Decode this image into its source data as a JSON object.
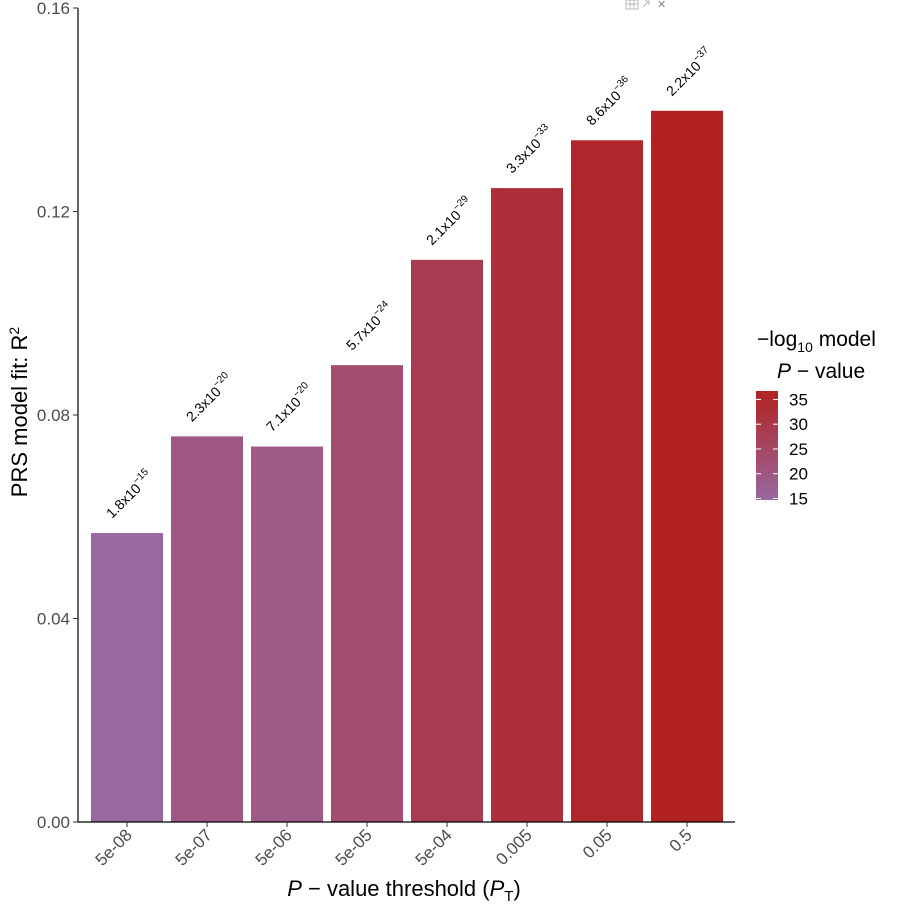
{
  "chart_data": {
    "type": "bar",
    "title": "",
    "xlabel": {
      "italic_part": "P",
      "main": " − value threshold (",
      "sym": "P",
      "sub": "T",
      "close": ")"
    },
    "ylabel": {
      "main": "PRS model fit:  R",
      "sup": "2"
    },
    "ylim": [
      0,
      0.16
    ],
    "yticks": [
      "0.00",
      "0.04",
      "0.08",
      "0.12",
      "0.16"
    ],
    "ytick_values": [
      0,
      0.04,
      0.08,
      0.12,
      0.16
    ],
    "categories": [
      "5e-08",
      "5e-07",
      "5e-06",
      "5e-05",
      "5e-04",
      "0.005",
      "0.05",
      "0.5"
    ],
    "values": [
      0.0568,
      0.0758,
      0.0738,
      0.0898,
      0.1105,
      0.1246,
      0.134,
      0.1398
    ],
    "neg_log10_p": [
      14.7,
      19.6,
      19.1,
      23.2,
      28.7,
      32.5,
      35.1,
      36.7
    ],
    "annotations": [
      {
        "mant": "1.8x10",
        "exp": "−15"
      },
      {
        "mant": "2.3x10",
        "exp": "−20"
      },
      {
        "mant": "7.1x10",
        "exp": "−20"
      },
      {
        "mant": "5.7x10",
        "exp": "−24"
      },
      {
        "mant": "2.1x10",
        "exp": "−29"
      },
      {
        "mant": "3.3x10",
        "exp": "−33"
      },
      {
        "mant": "8.6x10",
        "exp": "−36"
      },
      {
        "mant": "2.2x10",
        "exp": "−37"
      }
    ],
    "legend": {
      "title_line1_a": "−log",
      "title_line1_sub": "10",
      "title_line1_b": " model",
      "title_line2_italic": "P",
      "title_line2_b": " − value",
      "ticks": [
        "35",
        "30",
        "25",
        "20",
        "15"
      ],
      "tick_values": [
        35,
        30,
        25,
        20,
        15
      ],
      "range": [
        14.7,
        36.7
      ],
      "low_color": "#9a68a0",
      "high_color": "#b22222",
      "position": "right"
    }
  },
  "window_controls": {
    "close_symbol": "✕"
  }
}
